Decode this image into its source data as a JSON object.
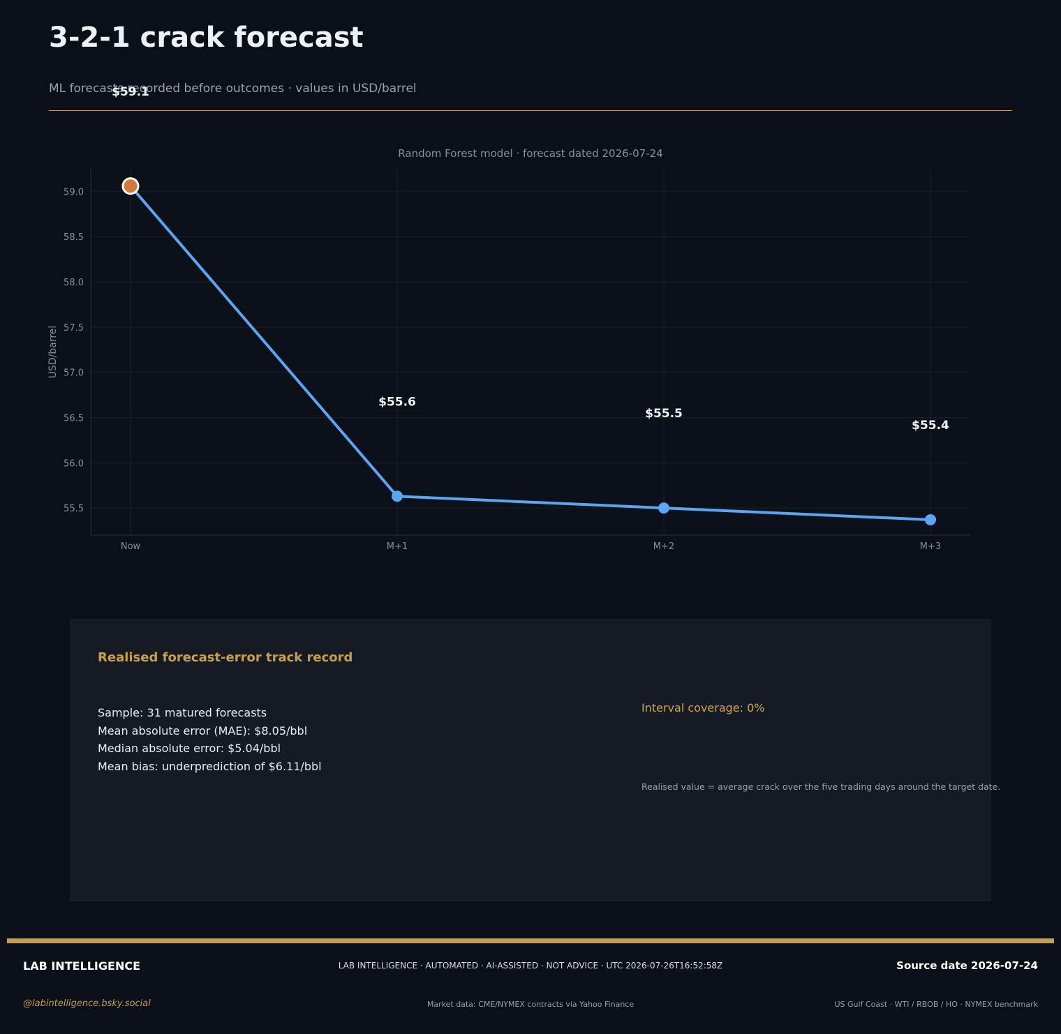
{
  "header": {
    "title": "3-2-1 crack forecast",
    "subtitle": "ML forecasts recorded before outcomes · values in USD/barrel"
  },
  "chart_data": {
    "type": "line",
    "title": "Random Forest model · forecast dated 2026-07-24",
    "xlabel": "",
    "ylabel": "USD/barrel",
    "categories": [
      "Now",
      "M+1",
      "M+2",
      "M+3"
    ],
    "values": [
      59.06,
      55.63,
      55.5,
      55.37
    ],
    "data_labels": [
      "$59.1",
      "$55.6",
      "$55.5",
      "$55.4"
    ],
    "ylim": [
      55.2,
      59.25
    ],
    "yticks": [
      55.5,
      56.0,
      56.5,
      57.0,
      57.5,
      58.0,
      58.5,
      59.0
    ],
    "grid": true,
    "legend": "none",
    "colors": {
      "line": "#5aa5f5",
      "current_point": "#d5793a",
      "background": "#0b0f17"
    }
  },
  "track_record": {
    "title": "Realised forecast-error track record",
    "stats": [
      "Sample: 31 matured forecasts",
      "Mean absolute error (MAE): $8.05/bbl",
      "Median absolute error: $5.04/bbl",
      "Mean bias: underprediction of $6.11/bbl"
    ],
    "coverage": "Interval coverage: 0%",
    "note": "Realised value = average crack over the five trading days around the target date."
  },
  "footer": {
    "brand": "LAB INTELLIGENCE",
    "disclaimer": "LAB INTELLIGENCE · AUTOMATED · AI-ASSISTED · NOT ADVICE · UTC 2026-07-26T16:52:58Z",
    "source_date": "Source date 2026-07-24",
    "handle": "@labintelligence.bsky.social",
    "market_data": "Market data: CME/NYMEX contracts via Yahoo Finance",
    "benchmark": "US Gulf Coast · WTI / RBOB / HO · NYMEX benchmark"
  },
  "colors": {
    "accent": "#c9a04a",
    "panel": "#161a23",
    "page_background": "#0b0f17"
  }
}
